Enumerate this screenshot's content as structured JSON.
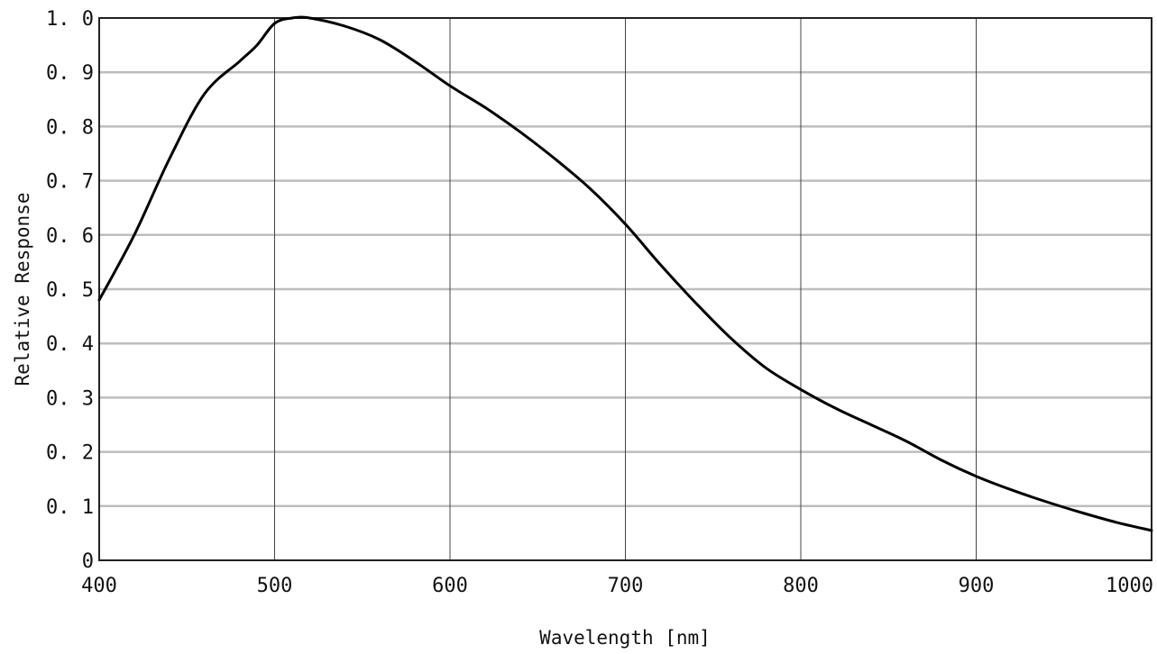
{
  "chart_data": {
    "type": "line",
    "title": "",
    "xlabel": "Wavelength [nm]",
    "ylabel": "Relative Response",
    "xlim": [
      400,
      1000
    ],
    "ylim": [
      0,
      1.0
    ],
    "grid": true,
    "x_ticks": [
      400,
      500,
      600,
      700,
      800,
      900,
      1000
    ],
    "x_tick_labels": [
      "400",
      "500",
      "600",
      "700",
      "800",
      "900",
      "1000"
    ],
    "y_ticks": [
      0,
      0.1,
      0.2,
      0.3,
      0.4,
      0.5,
      0.6,
      0.7,
      0.8,
      0.9,
      1.0
    ],
    "y_tick_labels": [
      "0",
      "0. 1",
      "0. 2",
      "0. 3",
      "0. 4",
      "0. 5",
      "0. 6",
      "0. 7",
      "0. 8",
      "0. 9",
      "1. 0"
    ],
    "series": [
      {
        "x": [
          400,
          420,
          440,
          460,
          480,
          490,
          500,
          510,
          520,
          540,
          560,
          580,
          600,
          620,
          640,
          660,
          680,
          700,
          720,
          740,
          760,
          780,
          800,
          820,
          840,
          860,
          880,
          900,
          920,
          940,
          960,
          980,
          1000
        ],
        "y": [
          0.48,
          0.6,
          0.74,
          0.86,
          0.92,
          0.95,
          0.99,
          1.0,
          1.0,
          0.985,
          0.96,
          0.92,
          0.875,
          0.835,
          0.79,
          0.74,
          0.685,
          0.62,
          0.545,
          0.475,
          0.41,
          0.355,
          0.315,
          0.28,
          0.25,
          0.22,
          0.185,
          0.155,
          0.13,
          0.108,
          0.088,
          0.07,
          0.055
        ]
      }
    ]
  }
}
